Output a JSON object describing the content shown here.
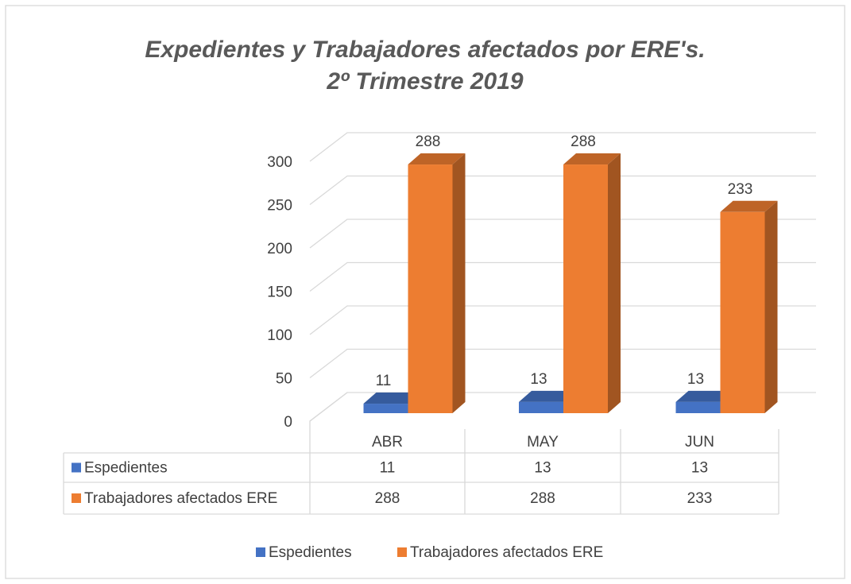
{
  "chart_data": {
    "type": "bar3d",
    "title": [
      "Expedientes y Trabajadores afectados por ERE's.",
      "2º Trimestre 2019"
    ],
    "categories": [
      "ABR",
      "MAY",
      "JUN"
    ],
    "series": [
      {
        "name": "Espedientes",
        "color": "#4472c4",
        "values": [
          11,
          13,
          13
        ]
      },
      {
        "name": "Trabajadores afectados ERE",
        "color": "#ed7d31",
        "values": [
          288,
          288,
          233
        ]
      }
    ],
    "ylim": [
      0,
      300
    ],
    "yticks": [
      0,
      50,
      100,
      150,
      200,
      250,
      300
    ],
    "grid": true,
    "data_table": true,
    "legend": "bottom"
  }
}
